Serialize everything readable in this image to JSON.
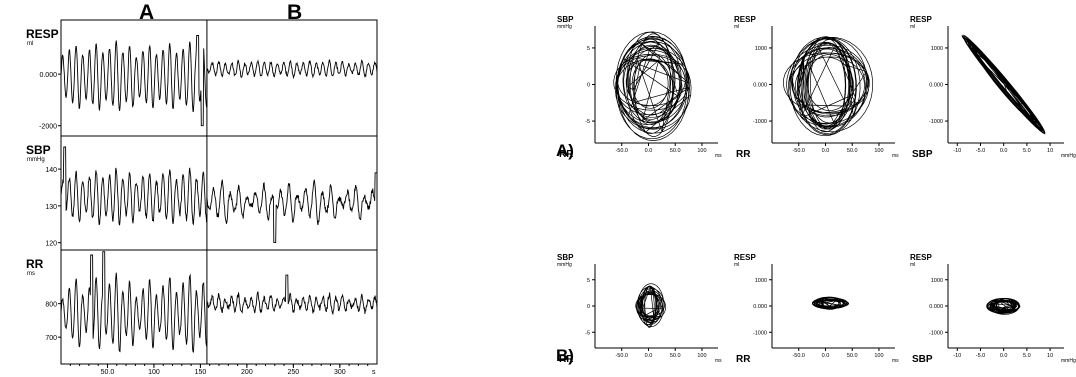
{
  "chart_data": [
    {
      "type": "line",
      "title": "",
      "section_labels": [
        "A",
        "B"
      ],
      "divider_x": 157,
      "x_unit": "s",
      "xlim": [
        0,
        340
      ],
      "x_ticks": [
        "50.0",
        "100",
        "150",
        "200",
        "250",
        "300"
      ],
      "x_tick_values": [
        50,
        100,
        150,
        200,
        250,
        300
      ],
      "panels": [
        {
          "label": "RESP",
          "unit": "ml",
          "ylim": [
            -2400,
            2100
          ],
          "y_ticks": [
            "0.000",
            "-2000"
          ],
          "y_tick_values": [
            0,
            -2000
          ],
          "series": [
            {
              "segments": [
                {
                  "t0": 0,
                  "t1": 157,
                  "period": 7.2,
                  "mean": -100,
                  "amp": 1100,
                  "amp_var": 300,
                  "noise": 60
                },
                {
                  "t0": 157,
                  "t1": 340,
                  "period": 7.0,
                  "mean": 200,
                  "amp": 250,
                  "amp_var": 80,
                  "noise": 60
                }
              ],
              "spikes": [
                {
                  "t": 152,
                  "value": -2000
                },
                {
                  "t": 147,
                  "value": 1500
                }
              ]
            }
          ]
        },
        {
          "label": "SBP",
          "unit": "mmHg",
          "ylim": [
            118,
            149
          ],
          "y_ticks": [
            "140",
            "130",
            "120"
          ],
          "y_tick_values": [
            140,
            130,
            120
          ],
          "series": [
            {
              "segments": [
                {
                  "t0": 0,
                  "t1": 157,
                  "period": 7.2,
                  "mean": 132.5,
                  "amp": 6,
                  "amp_var": 2,
                  "noise": 0.8
                },
                {
                  "t0": 157,
                  "t1": 340,
                  "period": 9.0,
                  "mean": 131,
                  "amp": 3.5,
                  "amp_var": 2.5,
                  "noise": 0.8
                }
              ],
              "spikes": [
                {
                  "t": 4,
                  "value": 146
                },
                {
                  "t": 230,
                  "value": 120
                },
                {
                  "t": 339,
                  "value": 139
                }
              ]
            }
          ]
        },
        {
          "label": "RR",
          "unit": "ms",
          "ylim": [
            620,
            960
          ],
          "y_ticks": [
            "800",
            "700"
          ],
          "y_tick_values": [
            800,
            700
          ],
          "series": [
            {
              "segments": [
                {
                  "t0": 0,
                  "t1": 157,
                  "period": 7.2,
                  "mean": 770,
                  "amp": 85,
                  "amp_var": 40,
                  "noise": 6
                },
                {
                  "t0": 157,
                  "t1": 340,
                  "period": 7.0,
                  "mean": 800,
                  "amp": 20,
                  "amp_var": 10,
                  "noise": 8
                }
              ],
              "spikes": [
                {
                  "t": 46,
                  "value": 955
                },
                {
                  "t": 33,
                  "value": 945
                },
                {
                  "t": 243,
                  "value": 885
                }
              ]
            }
          ]
        }
      ]
    },
    {
      "type": "scatter",
      "title": "",
      "rows": [
        {
          "row_label": "A)",
          "plots": [
            {
              "xlabel": "RR",
              "x_unit": "ms",
              "ylabel": "SBP",
              "y_unit": "mmHg",
              "xlim": [
                -100,
                130
              ],
              "ylim": [
                -8,
                8
              ],
              "x_ticks": [
                "-50.0",
                "0.0",
                "50.0",
                "100"
              ],
              "x_tick_values": [
                -50,
                0,
                50,
                100
              ],
              "y_ticks": [
                "5",
                "0",
                "-5"
              ],
              "y_tick_values": [
                5,
                0,
                -5
              ],
              "loops": {
                "count": 22,
                "rx": 55,
                "ry": 5.2,
                "rx_var": 22,
                "ry_var": 2.0,
                "tilt": 0,
                "cx": 5,
                "cy": 0
              }
            },
            {
              "xlabel": "RR",
              "x_unit": "ms",
              "ylabel": "RESP",
              "y_unit": "ml",
              "xlim": [
                -100,
                130
              ],
              "ylim": [
                -1600,
                1600
              ],
              "x_ticks": [
                "-50.0",
                "0.0",
                "50.0",
                "100"
              ],
              "x_tick_values": [
                -50,
                0,
                50,
                100
              ],
              "y_ticks": [
                "1000",
                "0.000",
                "-1000"
              ],
              "y_tick_values": [
                1000,
                0,
                -1000
              ],
              "loops": {
                "count": 22,
                "rx": 58,
                "ry": 1050,
                "rx_var": 22,
                "ry_var": 300,
                "tilt": 0,
                "cx": 5,
                "cy": 0
              }
            },
            {
              "xlabel": "SBP",
              "x_unit": "mmHg",
              "ylabel": "RESP",
              "y_unit": "ml",
              "xlim": [
                -12,
                13
              ],
              "ylim": [
                -1600,
                1600
              ],
              "x_ticks": [
                "-10",
                "-5.0",
                "0.0",
                "5.0",
                "10"
              ],
              "x_tick_values": [
                -10,
                -5,
                0,
                5,
                10
              ],
              "y_ticks": [
                "1000",
                "0.000",
                "-1000"
              ],
              "y_tick_values": [
                1000,
                0,
                -1000
              ],
              "loops": {
                "count": 20,
                "rx": 7.5,
                "ry": 160,
                "rx_var": 1.5,
                "ry_var": 60,
                "tilt": -58,
                "cx": 0,
                "cy": 0,
                "mode": "diag",
                "slope": -150
              }
            }
          ]
        },
        {
          "row_label": "B)",
          "plots": [
            {
              "xlabel": "RR",
              "x_unit": "ms",
              "ylabel": "SBP",
              "y_unit": "mmHg",
              "xlim": [
                -100,
                130
              ],
              "ylim": [
                -8,
                8
              ],
              "x_ticks": [
                "-50.0",
                "0.0",
                "50.0",
                "100"
              ],
              "x_tick_values": [
                -50,
                0,
                50,
                100
              ],
              "y_ticks": [
                "5",
                "0",
                "-5"
              ],
              "y_tick_values": [
                5,
                0,
                -5
              ],
              "loops": {
                "count": 16,
                "rx": 18,
                "ry": 3.0,
                "rx_var": 9,
                "ry_var": 1.2,
                "tilt": 0,
                "cx": 3,
                "cy": 0
              }
            },
            {
              "xlabel": "RR",
              "x_unit": "ms",
              "ylabel": "RESP",
              "y_unit": "ml",
              "xlim": [
                -100,
                130
              ],
              "ylim": [
                -1600,
                1600
              ],
              "x_ticks": [
                "-50.0",
                "0.0",
                "50.0",
                "100"
              ],
              "x_tick_values": [
                -50,
                0,
                50,
                100
              ],
              "y_ticks": [
                "1000",
                "0.000",
                "-1000"
              ],
              "y_tick_values": [
                1000,
                0,
                -1000
              ],
              "loops": {
                "count": 18,
                "rx": 24,
                "ry": 160,
                "rx_var": 10,
                "ry_var": 70,
                "tilt": 0,
                "cx": 8,
                "cy": 100
              }
            },
            {
              "xlabel": "SBP",
              "x_unit": "mmHg",
              "ylabel": "RESP",
              "y_unit": "ml",
              "xlim": [
                -12,
                13
              ],
              "ylim": [
                -1600,
                1600
              ],
              "x_ticks": [
                "-10",
                "-5.0",
                "0.0",
                "5.0",
                "10"
              ],
              "x_tick_values": [
                -10,
                -5,
                0,
                5,
                10
              ],
              "y_ticks": [
                "1000",
                "0.000",
                "-1000"
              ],
              "y_tick_values": [
                1000,
                0,
                -1000
              ],
              "loops": {
                "count": 18,
                "rx": 2.6,
                "ry": 220,
                "rx_var": 1.0,
                "ry_var": 80,
                "tilt": 0,
                "cx": 0,
                "cy": 0
              }
            }
          ]
        }
      ]
    }
  ]
}
